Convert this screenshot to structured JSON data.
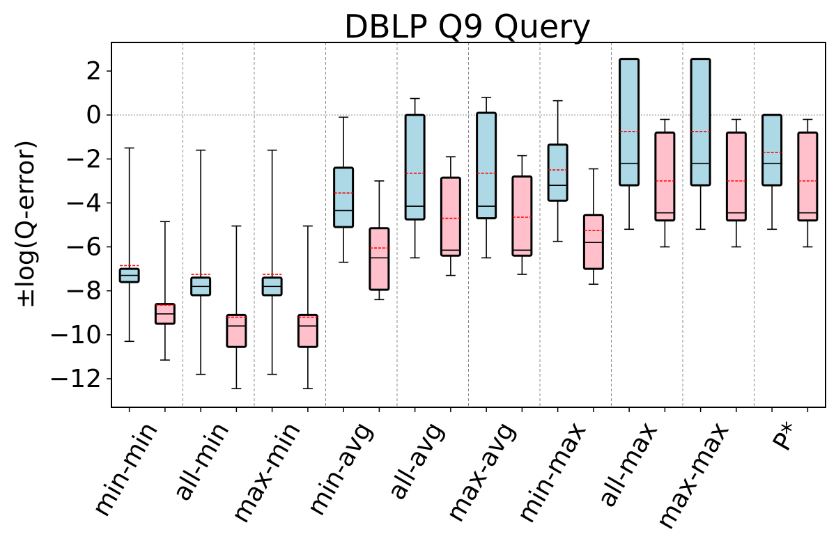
{
  "chart_data": {
    "type": "box",
    "title": "DBLP Q9 Query",
    "xlabel": "",
    "ylabel": "±log(Q-error)",
    "ylim": [
      -13.3,
      3.3
    ],
    "yticks": [
      2,
      0,
      -2,
      -4,
      -6,
      -8,
      -10,
      -12
    ],
    "ytick_labels": [
      "2",
      "0",
      "−2",
      "−4",
      "−6",
      "−8",
      "−10",
      "−12"
    ],
    "categories": [
      "min-min",
      "all-min",
      "max-min",
      "min-avg",
      "all-avg",
      "max-avg",
      "min-max",
      "all-max",
      "max-max",
      "P*"
    ],
    "grid": {
      "zero_line": true,
      "group_separators": true
    },
    "colors": {
      "blue_box": "#add8e6",
      "pink_box": "#ffc0cb",
      "mean_line": "#ff0000",
      "median_line": "#000000"
    },
    "series": [
      {
        "color": "#add8e6",
        "boxes": [
          {
            "whislo": -10.3,
            "q1": -7.6,
            "med": -7.3,
            "q3": -7.0,
            "whishi": -1.5,
            "mean": -6.85
          },
          {
            "whislo": -11.8,
            "q1": -8.2,
            "med": -7.8,
            "q3": -7.4,
            "whishi": -1.6,
            "mean": -7.25
          },
          {
            "whislo": -11.8,
            "q1": -8.2,
            "med": -7.8,
            "q3": -7.4,
            "whishi": -1.6,
            "mean": -7.25
          },
          {
            "whislo": -6.7,
            "q1": -5.1,
            "med": -4.35,
            "q3": -2.4,
            "whishi": -0.1,
            "mean": -3.55
          },
          {
            "whislo": -6.5,
            "q1": -4.75,
            "med": -4.15,
            "q3": 0.0,
            "whishi": 0.75,
            "mean": -2.65
          },
          {
            "whislo": -6.5,
            "q1": -4.7,
            "med": -4.15,
            "q3": 0.1,
            "whishi": 0.8,
            "mean": -2.65
          },
          {
            "whislo": -5.75,
            "q1": -3.9,
            "med": -3.2,
            "q3": -1.35,
            "whishi": 0.65,
            "mean": -2.5
          },
          {
            "whislo": -5.2,
            "q1": -3.2,
            "med": -2.2,
            "q3": 2.55,
            "whishi": 2.55,
            "mean": -0.75
          },
          {
            "whislo": -5.2,
            "q1": -3.2,
            "med": -2.2,
            "q3": 2.55,
            "whishi": 2.55,
            "mean": -0.75
          },
          {
            "whislo": -5.2,
            "q1": -3.2,
            "med": -2.2,
            "q3": 0.0,
            "whishi": 0.0,
            "mean": -1.7
          }
        ]
      },
      {
        "color": "#ffc0cb",
        "boxes": [
          {
            "whislo": -11.15,
            "q1": -9.5,
            "med": -9.05,
            "q3": -8.6,
            "whishi": -4.85,
            "mean": -8.65
          },
          {
            "whislo": -12.45,
            "q1": -10.55,
            "med": -9.6,
            "q3": -9.1,
            "whishi": -5.05,
            "mean": -9.2
          },
          {
            "whislo": -12.45,
            "q1": -10.55,
            "med": -9.6,
            "q3": -9.1,
            "whishi": -5.05,
            "mean": -9.2
          },
          {
            "whislo": -8.4,
            "q1": -7.95,
            "med": -6.5,
            "q3": -5.15,
            "whishi": -3.0,
            "mean": -6.05
          },
          {
            "whislo": -7.3,
            "q1": -6.4,
            "med": -6.15,
            "q3": -2.85,
            "whishi": -1.9,
            "mean": -4.7
          },
          {
            "whislo": -7.25,
            "q1": -6.4,
            "med": -6.15,
            "q3": -2.8,
            "whishi": -1.85,
            "mean": -4.65
          },
          {
            "whislo": -7.7,
            "q1": -7.0,
            "med": -5.8,
            "q3": -4.55,
            "whishi": -2.45,
            "mean": -5.25
          },
          {
            "whislo": -6.0,
            "q1": -4.8,
            "med": -4.45,
            "q3": -0.8,
            "whishi": -0.2,
            "mean": -3.0
          },
          {
            "whislo": -6.0,
            "q1": -4.8,
            "med": -4.45,
            "q3": -0.8,
            "whishi": -0.2,
            "mean": -3.0
          },
          {
            "whislo": -6.0,
            "q1": -4.8,
            "med": -4.45,
            "q3": -0.8,
            "whishi": -0.2,
            "mean": -3.0
          }
        ]
      }
    ]
  }
}
